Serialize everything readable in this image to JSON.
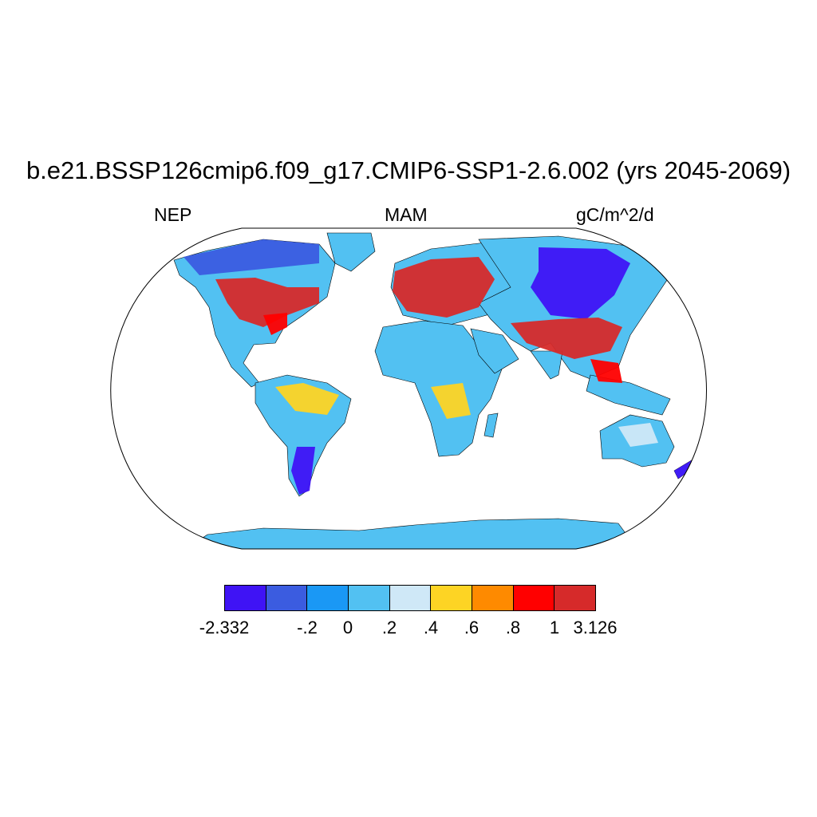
{
  "title": "b.e21.BSSP126cmip6.f09_g17.CMIP6-SSP1-2.6.002 (yrs 2045-2069)",
  "left_label": "NEP",
  "center_label": "MAM",
  "right_label": "gC/m^2/d",
  "colorbar": {
    "colors": [
      "#3f13f5",
      "#3b5ce0",
      "#1a98f5",
      "#52c1f2",
      "#cfe8f7",
      "#fdd424",
      "#fe8a00",
      "#ff0000",
      "#d62a2a"
    ],
    "labels": [
      "-2.332",
      "-.2",
      "0",
      ".2",
      ".4",
      ".6",
      ".8",
      "1",
      "3.126"
    ]
  },
  "land_colors": {
    "ocean": "#ffffff",
    "base": "#52c1f2",
    "strong_negative": "#3f13f5",
    "negative": "#3b5ce0",
    "light": "#cfe8f7",
    "yellow": "#fdd424",
    "orange": "#fe8a00",
    "red": "#ff0000",
    "dark_red": "#d62a2a"
  }
}
